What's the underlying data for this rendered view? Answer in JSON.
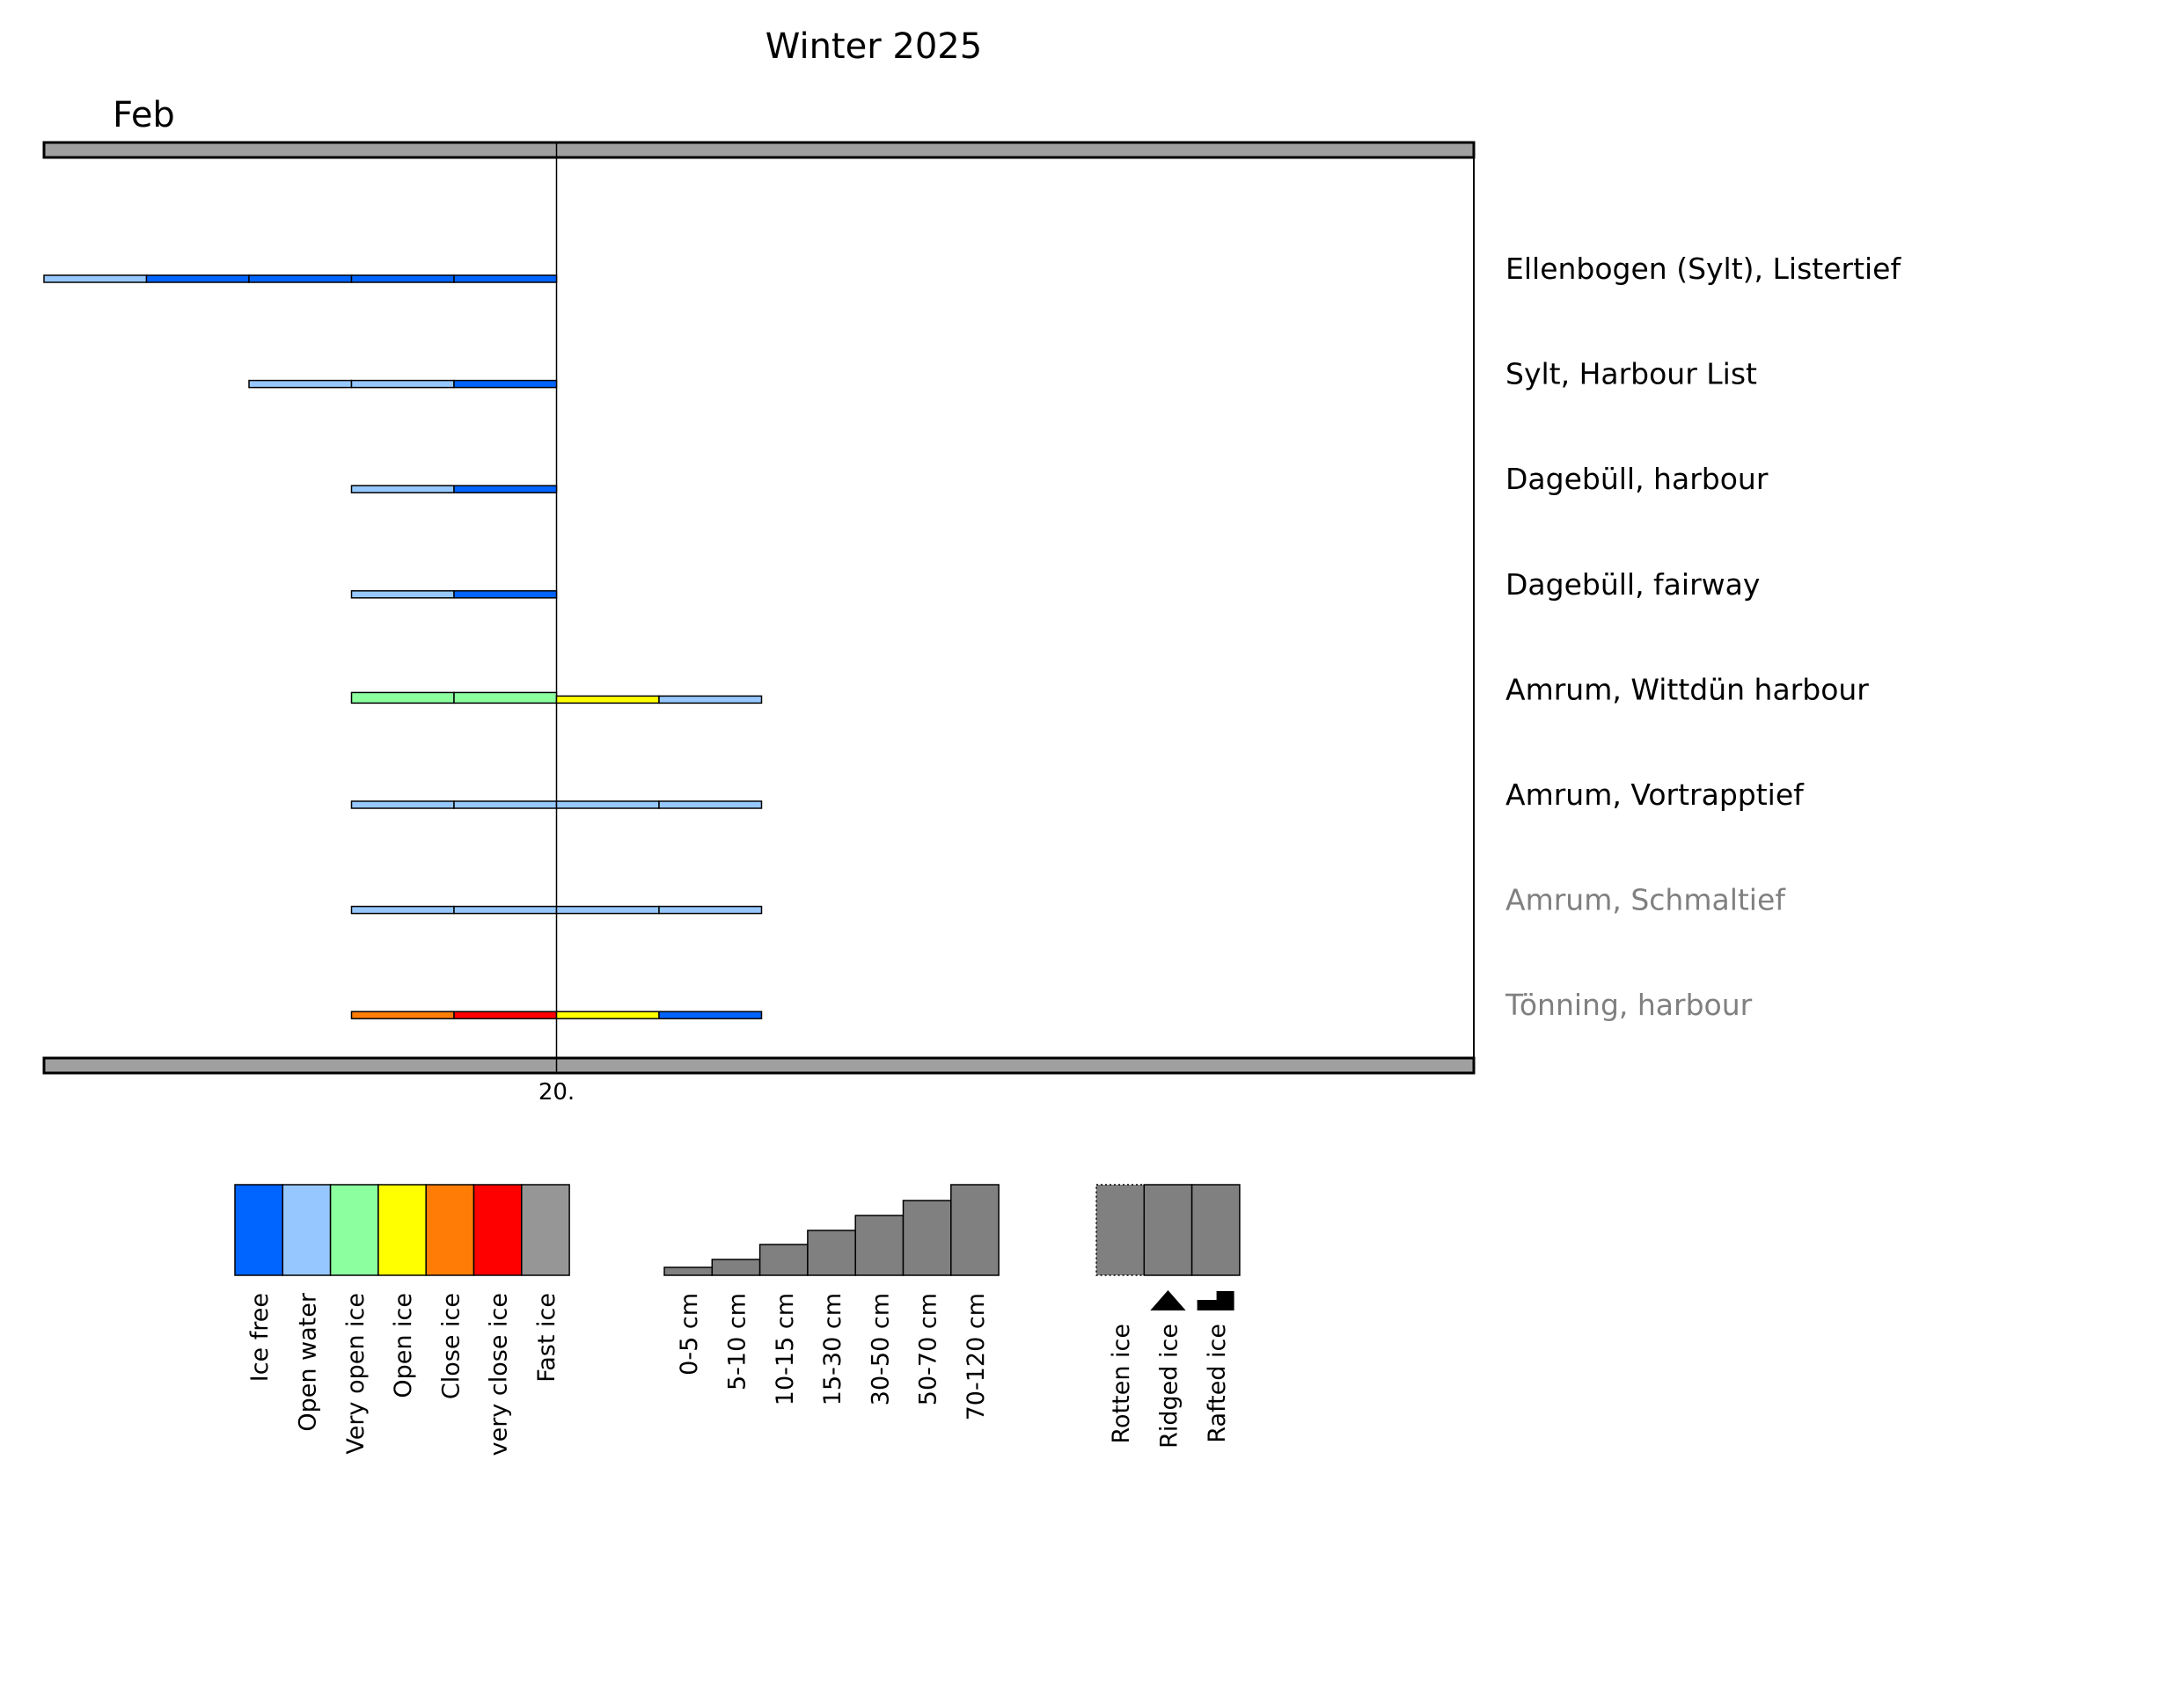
{
  "chart_data": {
    "type": "bar",
    "title": "Winter 2025",
    "month_label": "Feb",
    "x_tick_labels": [
      "20."
    ],
    "stations": [
      {
        "name": "Ellenbogen (Sylt), Listertief",
        "label_color": "#000000",
        "segments": [
          {
            "day": 15,
            "concentration": "Open water",
            "thickness": "0-5 cm"
          },
          {
            "day": 16,
            "concentration": "Ice free",
            "thickness": "0-5 cm"
          },
          {
            "day": 17,
            "concentration": "Ice free",
            "thickness": "0-5 cm"
          },
          {
            "day": 18,
            "concentration": "Ice free",
            "thickness": "0-5 cm"
          },
          {
            "day": 19,
            "concentration": "Ice free",
            "thickness": "0-5 cm"
          }
        ]
      },
      {
        "name": "Sylt, Harbour List",
        "label_color": "#000000",
        "segments": [
          {
            "day": 17,
            "concentration": "Open water",
            "thickness": "0-5 cm"
          },
          {
            "day": 18,
            "concentration": "Open water",
            "thickness": "0-5 cm"
          },
          {
            "day": 19,
            "concentration": "Ice free",
            "thickness": "0-5 cm"
          }
        ]
      },
      {
        "name": "Dagebüll, harbour",
        "label_color": "#000000",
        "segments": [
          {
            "day": 18,
            "concentration": "Open water",
            "thickness": "0-5 cm"
          },
          {
            "day": 19,
            "concentration": "Ice free",
            "thickness": "0-5 cm"
          }
        ]
      },
      {
        "name": "Dagebüll, fairway",
        "label_color": "#000000",
        "segments": [
          {
            "day": 18,
            "concentration": "Open water",
            "thickness": "0-5 cm"
          },
          {
            "day": 19,
            "concentration": "Ice free",
            "thickness": "0-5 cm"
          }
        ]
      },
      {
        "name": "Amrum, Wittdün harbour",
        "label_color": "#000000",
        "segments": [
          {
            "day": 18,
            "concentration": "Very open ice",
            "thickness": "5-10 cm"
          },
          {
            "day": 19,
            "concentration": "Very open ice",
            "thickness": "5-10 cm"
          },
          {
            "day": 20,
            "concentration": "Open ice",
            "thickness": "0-5 cm"
          },
          {
            "day": 21,
            "concentration": "Open water",
            "thickness": "0-5 cm"
          }
        ]
      },
      {
        "name": "Amrum, Vortrapptief",
        "label_color": "#000000",
        "segments": [
          {
            "day": 18,
            "concentration": "Open water",
            "thickness": "0-5 cm"
          },
          {
            "day": 19,
            "concentration": "Open water",
            "thickness": "0-5 cm"
          },
          {
            "day": 20,
            "concentration": "Open water",
            "thickness": "0-5 cm"
          },
          {
            "day": 21,
            "concentration": "Open water",
            "thickness": "0-5 cm"
          }
        ]
      },
      {
        "name": "Amrum, Schmaltief",
        "label_color": "#808080",
        "segments": [
          {
            "day": 18,
            "concentration": "Open water",
            "thickness": "0-5 cm"
          },
          {
            "day": 19,
            "concentration": "Open water",
            "thickness": "0-5 cm"
          },
          {
            "day": 20,
            "concentration": "Open water",
            "thickness": "0-5 cm"
          },
          {
            "day": 21,
            "concentration": "Open water",
            "thickness": "0-5 cm"
          }
        ]
      },
      {
        "name": "Tönning, harbour",
        "label_color": "#808080",
        "segments": [
          {
            "day": 18,
            "concentration": "Close ice",
            "thickness": "0-5 cm"
          },
          {
            "day": 19,
            "concentration": "very close ice",
            "thickness": "0-5 cm"
          },
          {
            "day": 20,
            "concentration": "Open ice",
            "thickness": "0-5 cm"
          },
          {
            "day": 21,
            "concentration": "Ice free",
            "thickness": "0-5 cm"
          }
        ]
      }
    ],
    "x_range_days": [
      15,
      23
    ],
    "legend": {
      "concentration": [
        {
          "label": "Ice free",
          "color": "#0064ff"
        },
        {
          "label": "Open water",
          "color": "#96c8ff"
        },
        {
          "label": "Very open ice",
          "color": "#8cff9f"
        },
        {
          "label": "Open ice",
          "color": "#ffff00"
        },
        {
          "label": "Close ice",
          "color": "#ff7d07"
        },
        {
          "label": "very close ice",
          "color": "#ff0000"
        },
        {
          "label": "Fast ice",
          "color": "#969696"
        }
      ],
      "thickness": [
        {
          "label": "0-5 cm",
          "level": 1
        },
        {
          "label": "5-10 cm",
          "level": 2
        },
        {
          "label": "10-15 cm",
          "level": 3
        },
        {
          "label": "15-30 cm",
          "level": 4
        },
        {
          "label": "30-50 cm",
          "level": 5
        },
        {
          "label": "50-70 cm",
          "level": 6
        },
        {
          "label": "70-120 cm",
          "level": 7
        }
      ],
      "forms": [
        {
          "label": "Rotten ice",
          "marker": "dotted-border"
        },
        {
          "label": "Ridged ice",
          "marker": "triangle-icon"
        },
        {
          "label": "Rafted ice",
          "marker": "step-icon"
        }
      ]
    }
  }
}
